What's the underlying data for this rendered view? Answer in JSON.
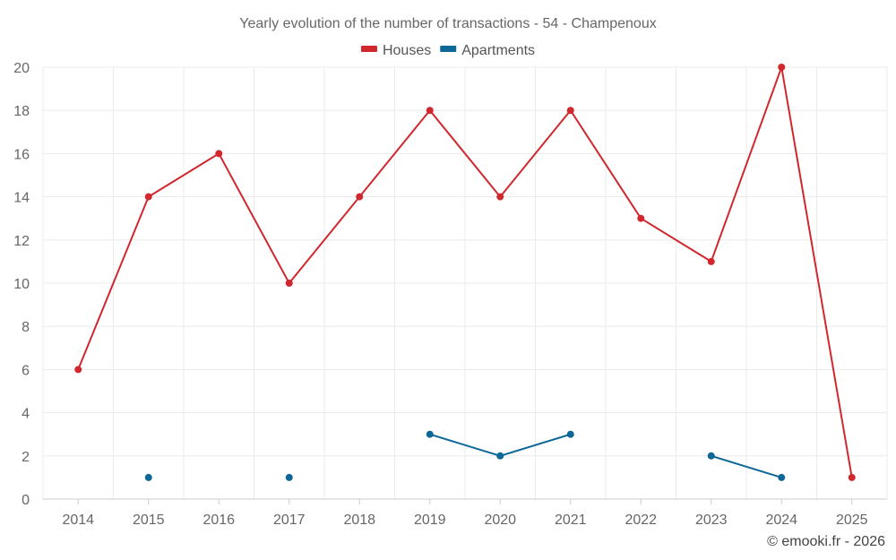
{
  "chart_data": {
    "type": "line",
    "title": "Yearly evolution of the number of transactions - 54 - Champenoux",
    "categories": [
      "2014",
      "2015",
      "2016",
      "2017",
      "2018",
      "2019",
      "2020",
      "2021",
      "2022",
      "2023",
      "2024",
      "2025"
    ],
    "series": [
      {
        "name": "Houses",
        "color": "#d0282e",
        "values": [
          6,
          14,
          16,
          10,
          14,
          18,
          14,
          18,
          13,
          11,
          20,
          1
        ]
      },
      {
        "name": "Apartments",
        "color": "#0d6797",
        "values": [
          null,
          1,
          null,
          1,
          null,
          3,
          2,
          3,
          null,
          2,
          1,
          null
        ]
      }
    ],
    "ylim": [
      0,
      20
    ],
    "yticks": [
      0,
      2,
      4,
      6,
      8,
      10,
      12,
      14,
      16,
      18,
      20
    ],
    "legend_position": "top-center",
    "grid": true
  },
  "credit": "© emooki.fr - 2026"
}
